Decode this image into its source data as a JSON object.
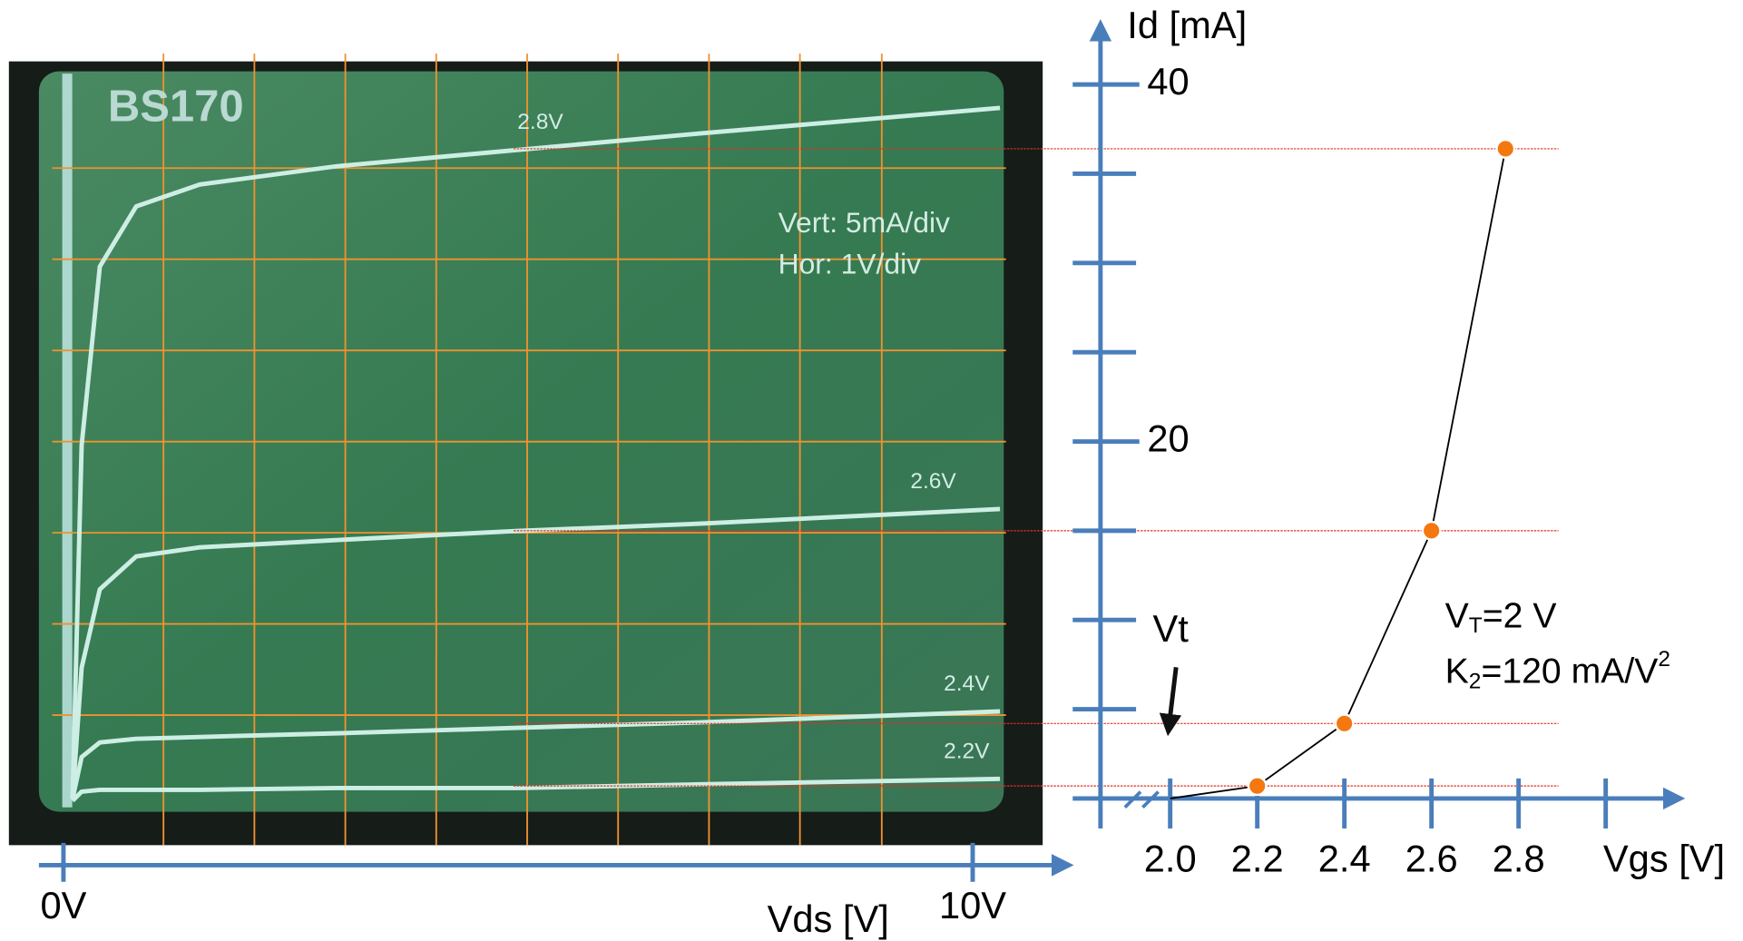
{
  "chart_data": [
    {
      "type": "line",
      "title": "BS170",
      "annotations": [
        "Vert: 5mA/div",
        "Hor: 1V/div"
      ],
      "xlabel": "Vds [V]",
      "x": [
        0.1,
        0.2,
        0.4,
        0.8,
        1.5,
        3,
        5,
        7,
        10.3
      ],
      "series": [
        {
          "name": "2.8V",
          "color": "#cdeee4",
          "values": [
            0.4,
            19.8,
            29.6,
            32.9,
            34.1,
            35.1,
            36,
            36.9,
            38.3
          ]
        },
        {
          "name": "2.6V",
          "color": "#cdeee4",
          "values": [
            0.4,
            7.6,
            11.9,
            13.7,
            14.2,
            14.6,
            15.1,
            15.5,
            16.3
          ]
        },
        {
          "name": "2.4V",
          "color": "#cdeee4",
          "values": [
            0.4,
            2.7,
            3.5,
            3.7,
            3.8,
            4.0,
            4.3,
            4.6,
            5.2
          ]
        },
        {
          "name": "2.2V",
          "color": "#cdeee4",
          "values": [
            0.3,
            0.8,
            0.9,
            0.9,
            0.9,
            1.0,
            1.0,
            1.2,
            1.5
          ]
        }
      ],
      "xlim": [
        -0.27,
        11.1
      ],
      "ylim": [
        0,
        40
      ],
      "xticks": [
        {
          "value": 0,
          "label": "0V"
        },
        {
          "value": 10,
          "label": "10V"
        }
      ],
      "xgrid": [
        1.1,
        2.1,
        3.1,
        4.1,
        5.1,
        6.1,
        7.1,
        8.1,
        9.0
      ],
      "ygrid": [
        5,
        10,
        15,
        20,
        25,
        30,
        35
      ],
      "grid_color": "#f0922e",
      "axis_color": "#4a7ebb"
    },
    {
      "type": "line",
      "xlabel": "Vgs [V]",
      "ylabel": "Id [mA]",
      "x": [
        2,
        2.2,
        2.4,
        2.6,
        2.77
      ],
      "series": [
        {
          "color": "#000000",
          "marker_color": "#f5770f",
          "values": [
            0,
            0.7,
            4.2,
            15.0,
            36.4
          ]
        }
      ],
      "xlim": [
        1.84,
        3.18
      ],
      "ylim": [
        0,
        43.6
      ],
      "xticks": [
        {
          "value": 2,
          "label": "2.0"
        },
        2.2,
        2.4,
        2.6,
        2.8
      ],
      "xminorticks": [
        3
      ],
      "yticks": [
        20,
        40
      ],
      "yminorticks": [
        5,
        10,
        15,
        25,
        30,
        35
      ],
      "guide_color": "#e2301f",
      "axis_color": "#4a7ebb",
      "vt_label": "Vt",
      "params": [
        [
          "V",
          "T",
          "=2 V"
        ],
        [
          "K",
          "2",
          "=120 mA/V",
          "2"
        ]
      ]
    }
  ]
}
